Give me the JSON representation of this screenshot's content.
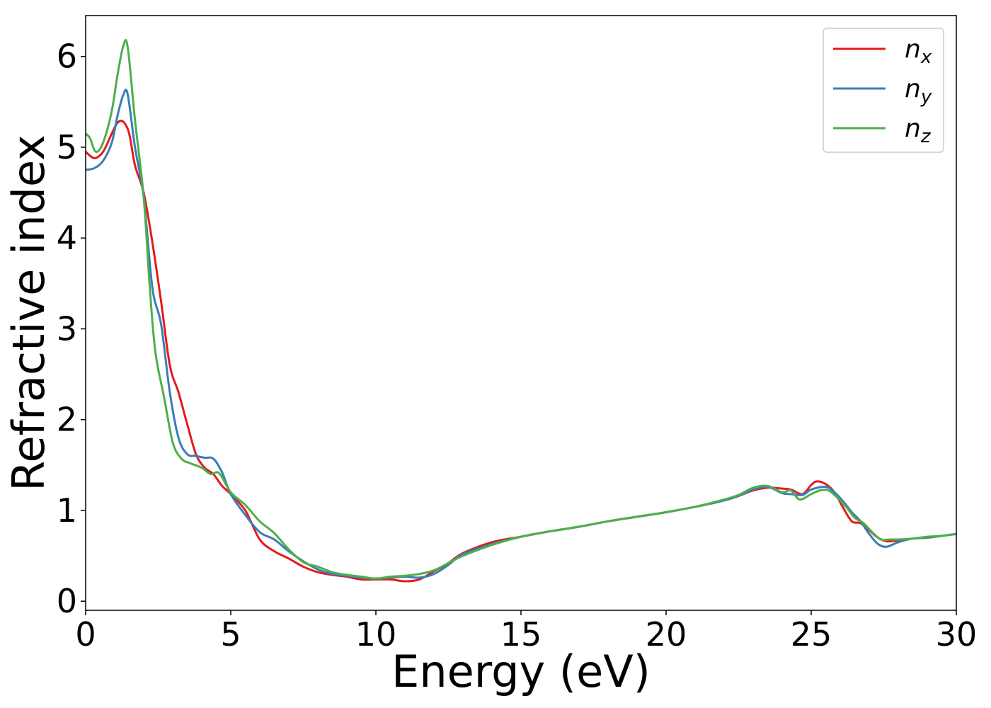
{
  "chart_data": {
    "type": "line",
    "title": "",
    "xlabel": "Energy (eV)",
    "ylabel": "Refractive index",
    "xlim": [
      0,
      30
    ],
    "ylim": [
      -0.1,
      6.45
    ],
    "xticks": [
      0,
      5,
      10,
      15,
      20,
      25,
      30
    ],
    "yticks": [
      0,
      1,
      2,
      3,
      4,
      5,
      6
    ],
    "grid": false,
    "legend_position": "top-right",
    "series": [
      {
        "name": "n",
        "subscript": "x",
        "color": "#e41a1c",
        "x": [
          0,
          0.3,
          0.6,
          0.9,
          1.1,
          1.3,
          1.5,
          1.7,
          2.0,
          2.3,
          2.6,
          2.9,
          3.2,
          3.5,
          3.8,
          4.1,
          4.4,
          4.7,
          5.0,
          5.5,
          6.0,
          6.5,
          7.0,
          7.5,
          8.0,
          8.5,
          9.0,
          9.5,
          10.0,
          10.5,
          11.0,
          11.5,
          12.0,
          12.5,
          13.0,
          14.0,
          15.0,
          16.0,
          17.0,
          18.0,
          19.0,
          20.0,
          21.0,
          22.0,
          22.5,
          23.0,
          23.5,
          24.0,
          24.3,
          24.7,
          25.0,
          25.2,
          25.5,
          25.8,
          26.1,
          26.4,
          26.7,
          27.0,
          27.3,
          27.6,
          28.0,
          28.5,
          29.0,
          29.5,
          30.0
        ],
        "y": [
          4.95,
          4.88,
          4.95,
          5.15,
          5.27,
          5.28,
          5.15,
          4.8,
          4.5,
          3.95,
          3.3,
          2.6,
          2.3,
          1.95,
          1.62,
          1.47,
          1.4,
          1.27,
          1.18,
          1.0,
          0.68,
          0.55,
          0.47,
          0.38,
          0.32,
          0.29,
          0.27,
          0.24,
          0.24,
          0.24,
          0.22,
          0.24,
          0.33,
          0.42,
          0.53,
          0.65,
          0.71,
          0.77,
          0.82,
          0.88,
          0.93,
          0.98,
          1.04,
          1.11,
          1.16,
          1.22,
          1.25,
          1.24,
          1.23,
          1.18,
          1.28,
          1.32,
          1.29,
          1.2,
          1.03,
          0.88,
          0.86,
          0.78,
          0.7,
          0.66,
          0.67,
          0.69,
          0.7,
          0.72,
          0.74
        ]
      },
      {
        "name": "n",
        "subscript": "y",
        "color": "#377eb8",
        "x": [
          0,
          0.3,
          0.6,
          0.9,
          1.1,
          1.3,
          1.45,
          1.7,
          2.0,
          2.3,
          2.6,
          2.9,
          3.2,
          3.5,
          3.8,
          4.1,
          4.4,
          4.7,
          5.0,
          5.5,
          6.0,
          6.5,
          7.0,
          7.5,
          8.0,
          8.5,
          9.0,
          9.5,
          10.0,
          10.5,
          11.0,
          11.5,
          12.0,
          12.5,
          13.0,
          14.0,
          15.0,
          16.0,
          17.0,
          18.0,
          19.0,
          20.0,
          21.0,
          22.0,
          22.5,
          23.0,
          23.5,
          24.0,
          24.3,
          24.7,
          25.0,
          25.5,
          25.8,
          26.1,
          26.4,
          26.7,
          27.0,
          27.3,
          27.6,
          28.0,
          28.5,
          29.0,
          29.5,
          30.0
        ],
        "y": [
          4.75,
          4.77,
          4.85,
          5.05,
          5.35,
          5.58,
          5.58,
          5.0,
          4.45,
          3.45,
          3.05,
          2.3,
          1.8,
          1.62,
          1.6,
          1.58,
          1.57,
          1.42,
          1.18,
          0.95,
          0.76,
          0.68,
          0.55,
          0.44,
          0.35,
          0.3,
          0.28,
          0.26,
          0.25,
          0.26,
          0.27,
          0.26,
          0.3,
          0.4,
          0.52,
          0.63,
          0.71,
          0.77,
          0.82,
          0.88,
          0.93,
          0.98,
          1.04,
          1.11,
          1.16,
          1.23,
          1.26,
          1.19,
          1.18,
          1.17,
          1.23,
          1.26,
          1.2,
          1.1,
          0.98,
          0.88,
          0.74,
          0.63,
          0.6,
          0.65,
          0.69,
          0.7,
          0.72,
          0.74
        ]
      },
      {
        "name": "n",
        "subscript": "z",
        "color": "#4daf4a",
        "x": [
          0,
          0.15,
          0.35,
          0.6,
          0.9,
          1.1,
          1.3,
          1.45,
          1.7,
          2.0,
          2.2,
          2.4,
          2.7,
          3.0,
          3.3,
          3.6,
          4.0,
          4.3,
          4.6,
          5.0,
          5.5,
          6.0,
          6.5,
          7.0,
          7.5,
          8.0,
          8.5,
          9.0,
          9.5,
          10.0,
          10.5,
          11.0,
          11.5,
          12.0,
          12.5,
          13.0,
          14.0,
          15.0,
          16.0,
          17.0,
          18.0,
          19.0,
          20.0,
          21.0,
          22.0,
          22.5,
          23.0,
          23.5,
          24.0,
          24.3,
          24.6,
          25.0,
          25.3,
          25.6,
          25.9,
          26.2,
          26.5,
          26.8,
          27.1,
          27.4,
          27.7,
          28.0,
          28.5,
          29.0,
          29.5,
          30.0
        ],
        "y": [
          5.15,
          5.1,
          4.95,
          5.05,
          5.4,
          5.8,
          6.12,
          6.1,
          5.3,
          4.45,
          3.5,
          2.75,
          2.25,
          1.75,
          1.57,
          1.52,
          1.47,
          1.4,
          1.41,
          1.2,
          1.06,
          0.88,
          0.75,
          0.57,
          0.43,
          0.38,
          0.32,
          0.29,
          0.27,
          0.25,
          0.27,
          0.28,
          0.3,
          0.34,
          0.42,
          0.5,
          0.62,
          0.71,
          0.77,
          0.82,
          0.88,
          0.93,
          0.98,
          1.04,
          1.12,
          1.17,
          1.25,
          1.27,
          1.2,
          1.22,
          1.12,
          1.18,
          1.22,
          1.22,
          1.14,
          1.04,
          0.92,
          0.86,
          0.76,
          0.68,
          0.68,
          0.68,
          0.69,
          0.71,
          0.72,
          0.74
        ]
      }
    ]
  }
}
